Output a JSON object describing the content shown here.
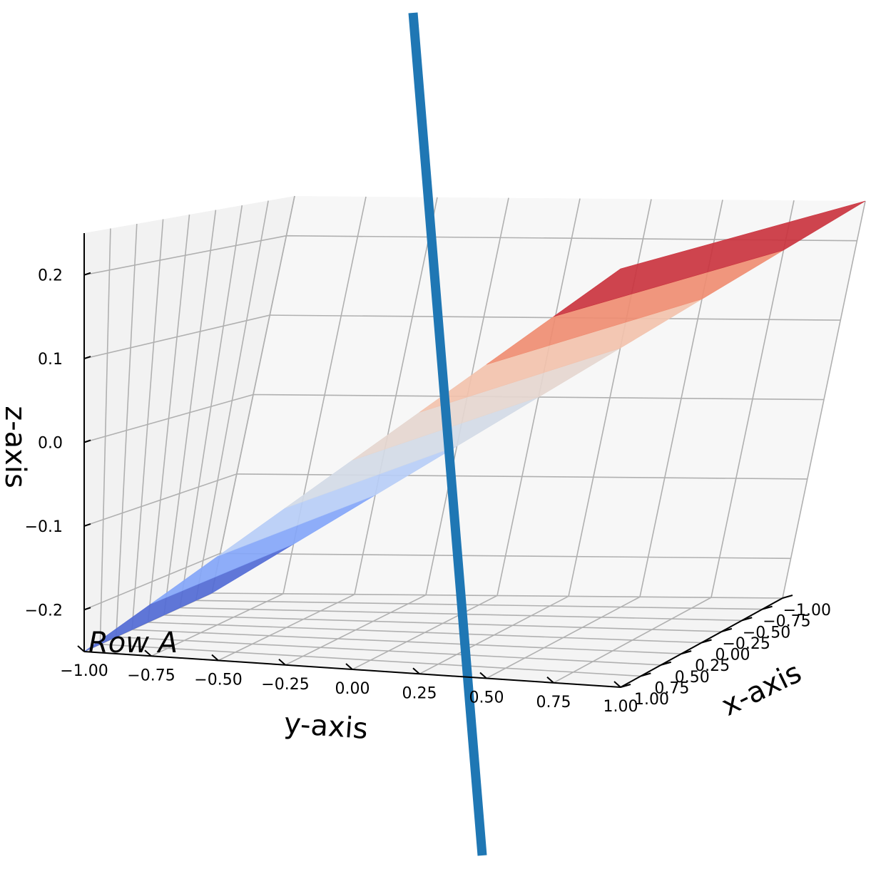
{
  "chart_data": {
    "type": "surface",
    "projection": "3d",
    "title": "",
    "xlabel": "x-axis",
    "ylabel": "y-axis",
    "zlabel": "z-axis",
    "xlim": [
      -1.0,
      1.0
    ],
    "ylim": [
      -1.0,
      1.0
    ],
    "zlim": [
      -0.25,
      0.25
    ],
    "x_ticks": [
      "−1.00",
      "−0.75",
      "−0.50",
      "−0.25",
      "0.00",
      "0.25",
      "0.50",
      "0.75",
      "1.00"
    ],
    "y_ticks": [
      "−1.00",
      "−0.75",
      "−0.50",
      "−0.25",
      "0.00",
      "0.25",
      "0.50",
      "0.75",
      "1.00"
    ],
    "z_ticks": [
      "−0.2",
      "−0.1",
      "0.0",
      "0.1",
      "0.2"
    ],
    "grid": true,
    "colormap": "coolwarm",
    "colormap_stops": [
      "#3b4cc0",
      "#7b9ff9",
      "#c0d4f5",
      "#dddddd",
      "#f2cbb7",
      "#ee8468",
      "#b40426"
    ],
    "surface_function": "z = 0.25 * y",
    "surface_z_range": [
      -0.25,
      0.25
    ],
    "line_series": {
      "color": "#1f77b4",
      "start_screen_hint": "top",
      "note_visible": false
    },
    "annotation": "Row A"
  }
}
